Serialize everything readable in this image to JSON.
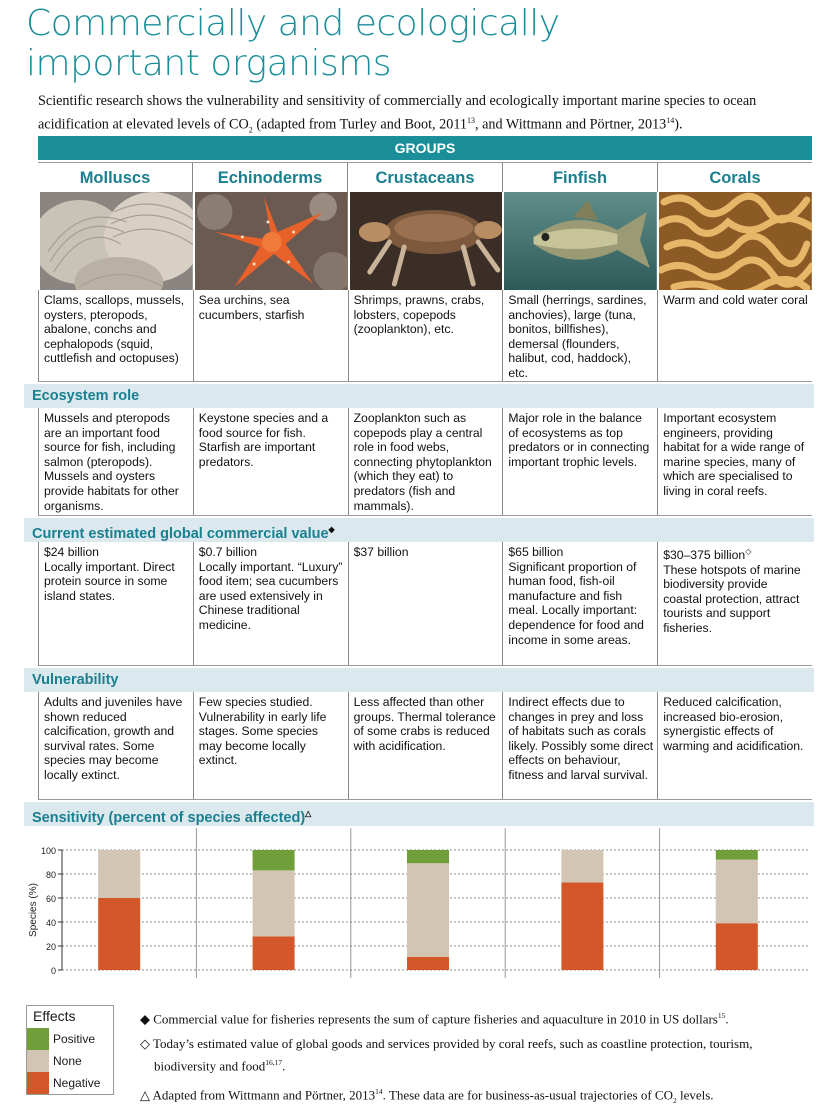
{
  "title_line1": "Commercially and ecologically",
  "title_line2": "important organisms",
  "intro": {
    "a": "Scientific research shows the vulnerability and sensitivity of commercially and ecologically important marine species to ocean acidification at elevated levels of CO",
    "sub2": "2",
    "b": " (adapted from Turley and Boot, 2011",
    "ref13": "13",
    "c": ", and Wittmann and Pörtner, 2013",
    "ref14": "14",
    "d": ")."
  },
  "groups_label": "GROUPS",
  "groups": [
    {
      "name": "Molluscs",
      "image": "clam-shells",
      "description": "Clams, scallops, mussels, oysters, pteropods, abalone, conchs and cephalopods (squid, cuttlefish and octopuses)",
      "ecosystem": "Mussels and pteropods are an important food source for fish, including salmon (pteropods). Mussels and oysters provide habitats for other organisms.",
      "value_amount": "$24 billion",
      "value_text": "Locally important. Direct protein source in some island states.",
      "vulnerability": "Adults and juveniles have shown reduced calcification, growth and survival rates. Some species may become locally extinct."
    },
    {
      "name": "Echinoderms",
      "image": "starfish",
      "description": "Sea urchins, sea cucumbers, starfish",
      "ecosystem": "Keystone species and a food source for fish. Starfish are important predators.",
      "value_amount": "$0.7 billion",
      "value_text": "Locally important. “Luxury” food item; sea cucumbers are used extensively in Chinese traditional medicine.",
      "vulnerability": "Few species studied. Vulnerability in early life stages. Some species may become locally extinct."
    },
    {
      "name": "Crustaceans",
      "image": "crab",
      "description": "Shrimps, prawns, crabs, lobsters, copepods (zooplankton), etc.",
      "ecosystem": "Zooplankton such as copepods play a central role in food webs, connecting phytoplankton (which they eat) to predators (fish and mammals).",
      "value_amount": "$37 billion",
      "value_text": "",
      "vulnerability": "Less affected than other groups. Thermal tolerance of some crabs is reduced with acidification."
    },
    {
      "name": "Finfish",
      "image": "fish",
      "description": "Small (herrings, sardines, anchovies), large (tuna, bonitos, billfishes), demersal (flounders, halibut, cod, haddock), etc.",
      "ecosystem": "Major role in the balance of ecosystems as top predators or in connecting important trophic levels.",
      "value_amount": "$65 billion",
      "value_text": "Significant proportion of human food, fish-oil manufacture and fish meal. Locally important: dependence for food and income in some areas.",
      "vulnerability": "Indirect effects due to changes in prey and loss of habitats such as corals likely. Possibly some direct effects on behaviour, fitness and larval survival."
    },
    {
      "name": "Corals",
      "image": "brain-coral",
      "description": "Warm and cold water coral",
      "ecosystem": "Important ecosystem engineers, providing habitat for a wide range of marine species, many of which are specialised to living in coral reefs.",
      "value_amount": "$30–375 billion",
      "value_mark": "◇",
      "value_text": "These hotspots of marine biodiversity provide coastal protection, attract tourists and support fisheries.",
      "vulnerability": "Reduced calcification, increased bio-erosion, synergistic effects of warming and acidification."
    }
  ],
  "sections": {
    "ecosystem": "Ecosystem role",
    "value": "Current estimated global commercial value",
    "value_mark": "◆",
    "vulnerability": "Vulnerability",
    "sensitivity": "Sensitivity (percent of species affected)",
    "sensitivity_mark": "△"
  },
  "chart_data": {
    "type": "bar",
    "stacked": true,
    "ylabel": "Species (%)",
    "ylim": [
      0,
      100
    ],
    "yticks": [
      "0",
      "20",
      "40",
      "60",
      "80",
      "100"
    ],
    "grid": true,
    "categories": [
      "Molluscs",
      "Echinoderms",
      "Crustaceans",
      "Finfish",
      "Corals"
    ],
    "series": [
      {
        "name": "Negative",
        "color": "#d4572a",
        "values": [
          60,
          28,
          11,
          73,
          39
        ]
      },
      {
        "name": "None",
        "color": "#d3c5b4",
        "values": [
          40,
          55,
          78,
          27,
          53
        ]
      },
      {
        "name": "Positive",
        "color": "#6f9e3a",
        "values": [
          0,
          17,
          11,
          0,
          8
        ]
      }
    ]
  },
  "legend": {
    "title": "Effects",
    "items": [
      {
        "label": "Positive",
        "color": "#6f9e3a"
      },
      {
        "label": "None",
        "color": "#d3c5b4"
      },
      {
        "label": "Negative",
        "color": "#d4572a"
      }
    ]
  },
  "notes": {
    "n1_mark": "◆",
    "n1": " Commercial value for fisheries represents the sum of capture fisheries and aquaculture in 2010 in US dollars",
    "n1_ref": "15",
    "n1_end": ".",
    "n2_mark": "◇",
    "n2": " Today’s estimated value of global goods and services provided by coral reefs, such as coastline protection, tourism, biodiversity and food",
    "n2_ref": "16,17",
    "n2_end": ".",
    "n3_mark": "△",
    "n3": " Adapted from Wittmann and Pörtner, 2013",
    "n3_ref": "14",
    "n3_b": ". These data are for business-as-usual trajectories of CO",
    "n3_sub": "2",
    "n3_end": " levels."
  },
  "colors": {
    "accent": "#1a8f9a",
    "section_bg": "#dbe9ee"
  }
}
